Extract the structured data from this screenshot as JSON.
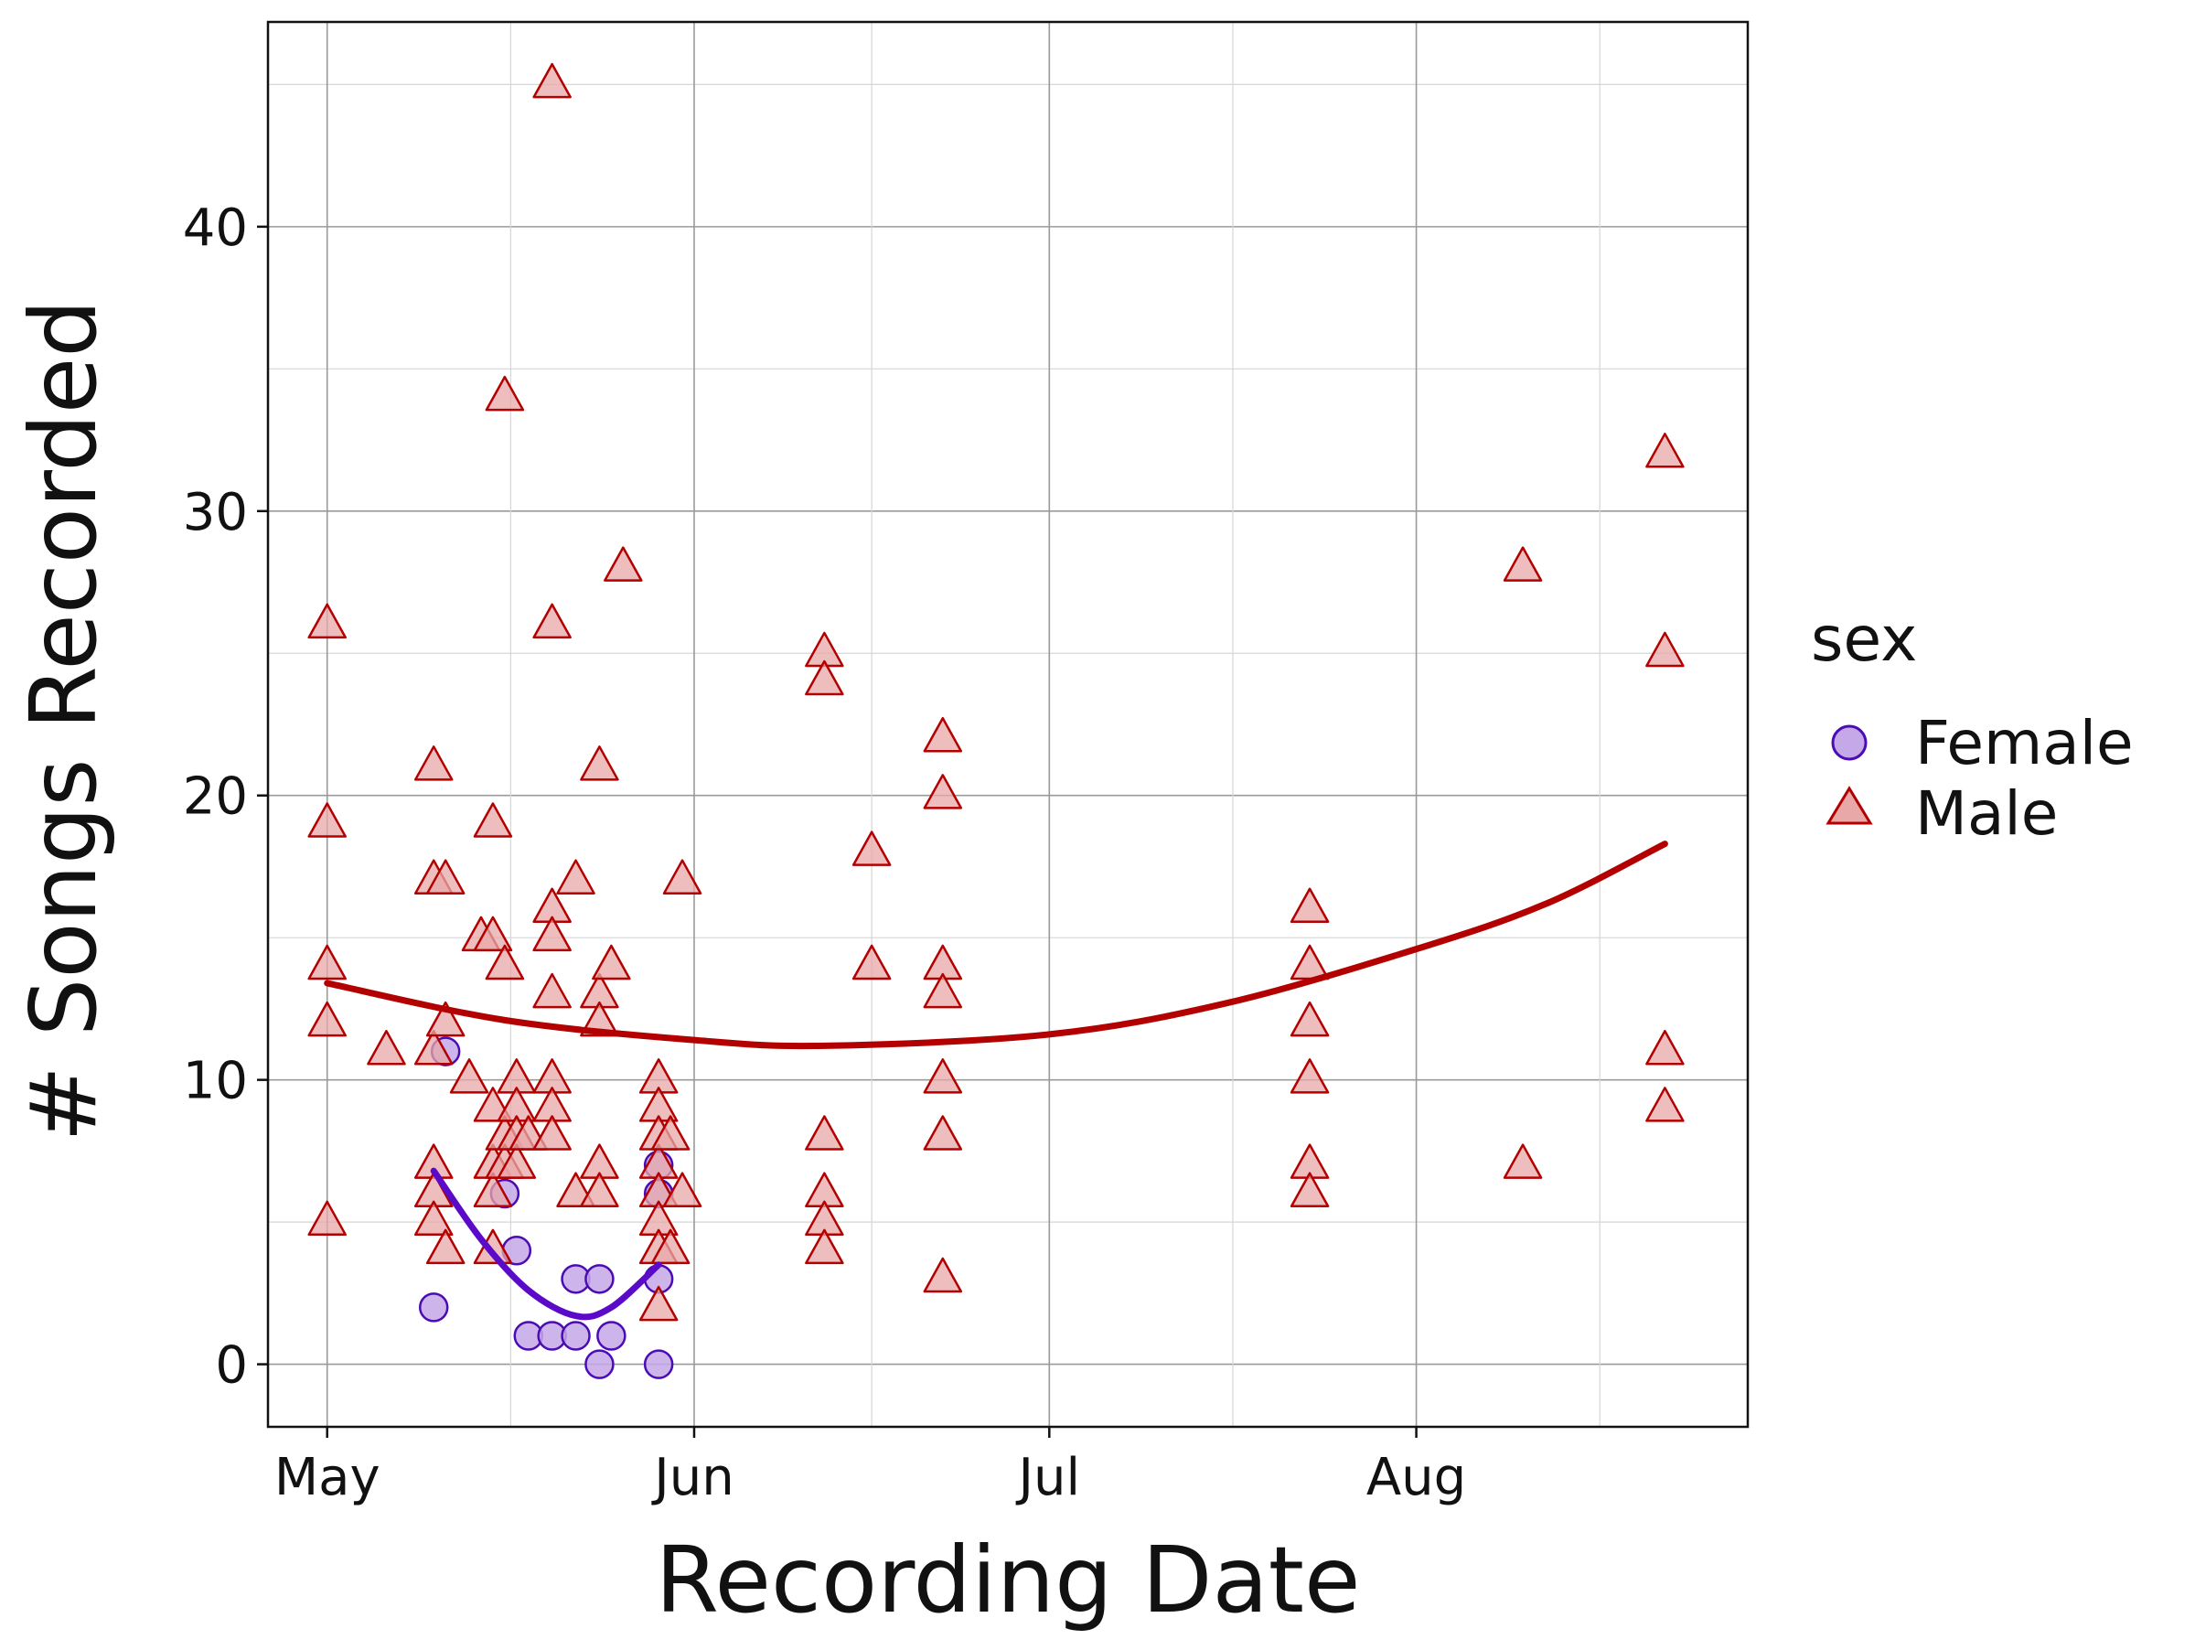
{
  "chart_data": {
    "type": "scatter",
    "title": "",
    "xlabel": "Recording Date",
    "ylabel": "# Songs Recorded",
    "x_axis_type": "date",
    "xlim": [
      "2019-04-26",
      "2019-08-29"
    ],
    "ylim": [
      -2.2,
      47.2
    ],
    "x_ticks": [
      {
        "date": "2019-05-01",
        "label": "May"
      },
      {
        "date": "2019-06-01",
        "label": "Jun"
      },
      {
        "date": "2019-07-01",
        "label": "Jul"
      },
      {
        "date": "2019-08-01",
        "label": "Aug"
      }
    ],
    "y_ticks": [
      0,
      10,
      20,
      30,
      40
    ],
    "grid": true,
    "legend": {
      "title": "sex",
      "position": "right"
    },
    "series": [
      {
        "name": "Female",
        "marker": "circle",
        "stroke": "#4b0bb5",
        "fill": "#c4a8e8",
        "points": [
          {
            "x": "2019-05-10",
            "y": 2
          },
          {
            "x": "2019-05-11",
            "y": 11
          },
          {
            "x": "2019-05-16",
            "y": 6
          },
          {
            "x": "2019-05-17",
            "y": 4
          },
          {
            "x": "2019-05-18",
            "y": 1
          },
          {
            "x": "2019-05-20",
            "y": 1
          },
          {
            "x": "2019-05-22",
            "y": 1
          },
          {
            "x": "2019-05-22",
            "y": 3
          },
          {
            "x": "2019-05-24",
            "y": 3
          },
          {
            "x": "2019-05-24",
            "y": 0
          },
          {
            "x": "2019-05-25",
            "y": 1
          },
          {
            "x": "2019-05-29",
            "y": 3
          },
          {
            "x": "2019-05-29",
            "y": 0
          },
          {
            "x": "2019-05-29",
            "y": 6
          },
          {
            "x": "2019-05-29",
            "y": 7
          }
        ],
        "trend": {
          "color": "#5b0bc8",
          "points": [
            {
              "x": "2019-05-10",
              "y": 6.8
            },
            {
              "x": "2019-05-14",
              "y": 4.4
            },
            {
              "x": "2019-05-18",
              "y": 2.6
            },
            {
              "x": "2019-05-22",
              "y": 1.7
            },
            {
              "x": "2019-05-25",
              "y": 2.0
            },
            {
              "x": "2019-05-29",
              "y": 3.5
            }
          ]
        }
      },
      {
        "name": "Male",
        "marker": "triangle",
        "stroke": "#b30000",
        "fill": "#e8a8a8",
        "points": [
          {
            "x": "2019-05-01",
            "y": 26
          },
          {
            "x": "2019-05-01",
            "y": 19
          },
          {
            "x": "2019-05-01",
            "y": 14
          },
          {
            "x": "2019-05-01",
            "y": 12
          },
          {
            "x": "2019-05-01",
            "y": 5
          },
          {
            "x": "2019-05-06",
            "y": 11
          },
          {
            "x": "2019-05-10",
            "y": 21
          },
          {
            "x": "2019-05-10",
            "y": 17
          },
          {
            "x": "2019-05-10",
            "y": 11
          },
          {
            "x": "2019-05-10",
            "y": 7
          },
          {
            "x": "2019-05-10",
            "y": 6
          },
          {
            "x": "2019-05-10",
            "y": 5
          },
          {
            "x": "2019-05-11",
            "y": 17
          },
          {
            "x": "2019-05-11",
            "y": 12
          },
          {
            "x": "2019-05-11",
            "y": 4
          },
          {
            "x": "2019-05-13",
            "y": 10
          },
          {
            "x": "2019-05-14",
            "y": 15
          },
          {
            "x": "2019-05-15",
            "y": 19
          },
          {
            "x": "2019-05-15",
            "y": 15
          },
          {
            "x": "2019-05-15",
            "y": 9
          },
          {
            "x": "2019-05-15",
            "y": 7
          },
          {
            "x": "2019-05-15",
            "y": 6
          },
          {
            "x": "2019-05-15",
            "y": 4
          },
          {
            "x": "2019-05-16",
            "y": 34
          },
          {
            "x": "2019-05-16",
            "y": 14
          },
          {
            "x": "2019-05-16",
            "y": 8
          },
          {
            "x": "2019-05-16",
            "y": 7
          },
          {
            "x": "2019-05-17",
            "y": 10
          },
          {
            "x": "2019-05-17",
            "y": 9
          },
          {
            "x": "2019-05-17",
            "y": 8
          },
          {
            "x": "2019-05-17",
            "y": 7
          },
          {
            "x": "2019-05-18",
            "y": 8
          },
          {
            "x": "2019-05-20",
            "y": 45
          },
          {
            "x": "2019-05-20",
            "y": 26
          },
          {
            "x": "2019-05-20",
            "y": 16
          },
          {
            "x": "2019-05-20",
            "y": 15
          },
          {
            "x": "2019-05-20",
            "y": 13
          },
          {
            "x": "2019-05-20",
            "y": 10
          },
          {
            "x": "2019-05-20",
            "y": 9
          },
          {
            "x": "2019-05-20",
            "y": 8
          },
          {
            "x": "2019-05-22",
            "y": 17
          },
          {
            "x": "2019-05-22",
            "y": 6
          },
          {
            "x": "2019-05-24",
            "y": 21
          },
          {
            "x": "2019-05-24",
            "y": 13
          },
          {
            "x": "2019-05-24",
            "y": 12
          },
          {
            "x": "2019-05-24",
            "y": 7
          },
          {
            "x": "2019-05-24",
            "y": 6
          },
          {
            "x": "2019-05-25",
            "y": 14
          },
          {
            "x": "2019-05-26",
            "y": 28
          },
          {
            "x": "2019-05-29",
            "y": 10
          },
          {
            "x": "2019-05-29",
            "y": 9
          },
          {
            "x": "2019-05-29",
            "y": 8
          },
          {
            "x": "2019-05-29",
            "y": 7
          },
          {
            "x": "2019-05-29",
            "y": 6
          },
          {
            "x": "2019-05-29",
            "y": 5
          },
          {
            "x": "2019-05-29",
            "y": 4
          },
          {
            "x": "2019-05-29",
            "y": 2
          },
          {
            "x": "2019-05-30",
            "y": 8
          },
          {
            "x": "2019-05-30",
            "y": 4
          },
          {
            "x": "2019-05-31",
            "y": 17
          },
          {
            "x": "2019-05-31",
            "y": 6
          },
          {
            "x": "2019-06-12",
            "y": 25
          },
          {
            "x": "2019-06-12",
            "y": 24
          },
          {
            "x": "2019-06-12",
            "y": 8
          },
          {
            "x": "2019-06-12",
            "y": 6
          },
          {
            "x": "2019-06-12",
            "y": 5
          },
          {
            "x": "2019-06-12",
            "y": 4
          },
          {
            "x": "2019-06-16",
            "y": 18
          },
          {
            "x": "2019-06-16",
            "y": 14
          },
          {
            "x": "2019-06-22",
            "y": 22
          },
          {
            "x": "2019-06-22",
            "y": 20
          },
          {
            "x": "2019-06-22",
            "y": 14
          },
          {
            "x": "2019-06-22",
            "y": 13
          },
          {
            "x": "2019-06-22",
            "y": 10
          },
          {
            "x": "2019-06-22",
            "y": 8
          },
          {
            "x": "2019-06-22",
            "y": 3
          },
          {
            "x": "2019-07-23",
            "y": 16
          },
          {
            "x": "2019-07-23",
            "y": 14
          },
          {
            "x": "2019-07-23",
            "y": 12
          },
          {
            "x": "2019-07-23",
            "y": 10
          },
          {
            "x": "2019-07-23",
            "y": 7
          },
          {
            "x": "2019-07-23",
            "y": 6
          },
          {
            "x": "2019-08-10",
            "y": 28
          },
          {
            "x": "2019-08-10",
            "y": 7
          },
          {
            "x": "2019-08-22",
            "y": 32
          },
          {
            "x": "2019-08-22",
            "y": 25
          },
          {
            "x": "2019-08-22",
            "y": 11
          },
          {
            "x": "2019-08-22",
            "y": 9
          }
        ],
        "trend": {
          "color": "#b30000",
          "points": [
            {
              "x": "2019-05-01",
              "y": 13.4
            },
            {
              "x": "2019-05-16",
              "y": 12.1
            },
            {
              "x": "2019-06-01",
              "y": 11.4
            },
            {
              "x": "2019-06-12",
              "y": 11.2
            },
            {
              "x": "2019-07-01",
              "y": 11.6
            },
            {
              "x": "2019-07-16",
              "y": 12.7
            },
            {
              "x": "2019-08-01",
              "y": 14.6
            },
            {
              "x": "2019-08-12",
              "y": 16.2
            },
            {
              "x": "2019-08-22",
              "y": 18.3
            }
          ]
        }
      }
    ]
  }
}
